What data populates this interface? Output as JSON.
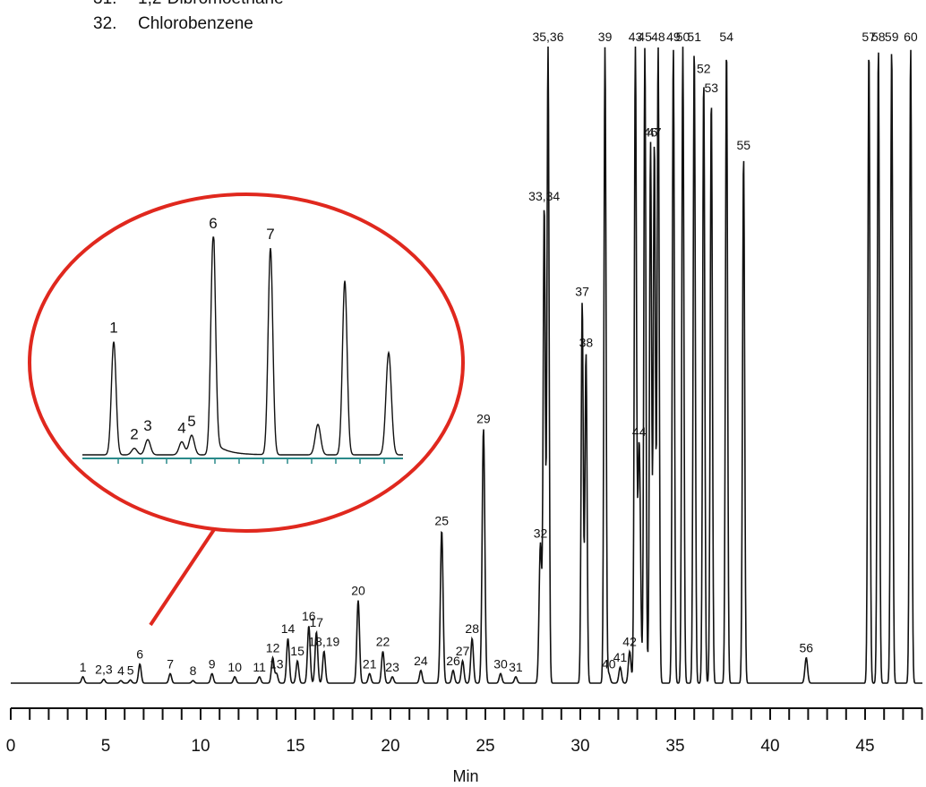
{
  "chart_data": {
    "type": "line",
    "xlabel": "Min",
    "xlim": [
      0,
      48.5
    ],
    "x_ticks": [
      "0",
      "5",
      "10",
      "15",
      "20",
      "25",
      "30",
      "35",
      "40",
      "45"
    ],
    "legend_entries": [
      {
        "num": "31.",
        "name": "1,2-Dibromoethane"
      },
      {
        "num": "32.",
        "name": "Chlorobenzene"
      }
    ],
    "peaks": [
      {
        "label": "1",
        "rt": 3.8,
        "h": 0.01
      },
      {
        "label": "2,3",
        "rt": 4.9,
        "h": 0.006
      },
      {
        "label": "4",
        "rt": 5.8,
        "h": 0.004
      },
      {
        "label": "5",
        "rt": 6.3,
        "h": 0.005
      },
      {
        "label": "6",
        "rt": 6.8,
        "h": 0.03
      },
      {
        "label": "7",
        "rt": 8.4,
        "h": 0.015
      },
      {
        "label": "8",
        "rt": 9.6,
        "h": 0.004
      },
      {
        "label": "9",
        "rt": 10.6,
        "h": 0.015
      },
      {
        "label": "10",
        "rt": 11.8,
        "h": 0.01
      },
      {
        "label": "11",
        "rt": 13.1,
        "h": 0.01
      },
      {
        "label": "12",
        "rt": 13.8,
        "h": 0.04
      },
      {
        "label": "13",
        "rt": 14.0,
        "h": 0.015
      },
      {
        "label": "14",
        "rt": 14.6,
        "h": 0.07
      },
      {
        "label": "15",
        "rt": 15.1,
        "h": 0.035
      },
      {
        "label": "16",
        "rt": 15.7,
        "h": 0.09
      },
      {
        "label": "17",
        "rt": 16.1,
        "h": 0.08
      },
      {
        "label": "18,19",
        "rt": 16.5,
        "h": 0.05
      },
      {
        "label": "20",
        "rt": 18.3,
        "h": 0.13
      },
      {
        "label": "21",
        "rt": 18.9,
        "h": 0.015
      },
      {
        "label": "22",
        "rt": 19.6,
        "h": 0.05
      },
      {
        "label": "23",
        "rt": 20.1,
        "h": 0.01
      },
      {
        "label": "24",
        "rt": 21.6,
        "h": 0.02
      },
      {
        "label": "25",
        "rt": 22.7,
        "h": 0.24
      },
      {
        "label": "26",
        "rt": 23.3,
        "h": 0.02
      },
      {
        "label": "27",
        "rt": 23.8,
        "h": 0.035
      },
      {
        "label": "28",
        "rt": 24.3,
        "h": 0.07
      },
      {
        "label": "29",
        "rt": 24.9,
        "h": 0.4
      },
      {
        "label": "30",
        "rt": 25.8,
        "h": 0.015
      },
      {
        "label": "31",
        "rt": 26.6,
        "h": 0.01
      },
      {
        "label": "32",
        "rt": 27.9,
        "h": 0.22
      },
      {
        "label": "33,34",
        "rt": 28.1,
        "h": 0.75
      },
      {
        "label": "35,36",
        "rt": 28.3,
        "h": 1.0
      },
      {
        "label": "37",
        "rt": 30.1,
        "h": 0.6
      },
      {
        "label": "38",
        "rt": 30.3,
        "h": 0.52
      },
      {
        "label": "39",
        "rt": 31.3,
        "h": 1.0
      },
      {
        "label": "40",
        "rt": 31.5,
        "h": 0.015
      },
      {
        "label": "41",
        "rt": 32.1,
        "h": 0.025
      },
      {
        "label": "42",
        "rt": 32.6,
        "h": 0.05
      },
      {
        "label": "43",
        "rt": 32.9,
        "h": 1.0
      },
      {
        "label": "44",
        "rt": 33.1,
        "h": 0.38
      },
      {
        "label": "45",
        "rt": 33.4,
        "h": 1.0
      },
      {
        "label": "46",
        "rt": 33.7,
        "h": 0.85
      },
      {
        "label": "47",
        "rt": 33.9,
        "h": 0.85
      },
      {
        "label": "48",
        "rt": 34.1,
        "h": 1.0
      },
      {
        "label": "49",
        "rt": 34.9,
        "h": 1.0
      },
      {
        "label": "50",
        "rt": 35.4,
        "h": 1.0
      },
      {
        "label": "51",
        "rt": 36.0,
        "h": 1.0
      },
      {
        "label": "52",
        "rt": 36.5,
        "h": 0.95
      },
      {
        "label": "53",
        "rt": 36.9,
        "h": 0.92
      },
      {
        "label": "54",
        "rt": 37.7,
        "h": 1.0
      },
      {
        "label": "55",
        "rt": 38.6,
        "h": 0.83
      },
      {
        "label": "56",
        "rt": 41.9,
        "h": 0.04
      },
      {
        "label": "57",
        "rt": 45.2,
        "h": 1.0
      },
      {
        "label": "58",
        "rt": 45.7,
        "h": 1.0
      },
      {
        "label": "59",
        "rt": 46.4,
        "h": 1.0
      },
      {
        "label": "60",
        "rt": 47.4,
        "h": 1.0
      }
    ],
    "inset": {
      "peaks": [
        {
          "label": "1",
          "h": 0.52
        },
        {
          "label": "2",
          "h": 0.03
        },
        {
          "label": "3",
          "h": 0.07
        },
        {
          "label": "4",
          "h": 0.06
        },
        {
          "label": "5",
          "h": 0.09
        },
        {
          "label": "6",
          "h": 1.0
        },
        {
          "label": "7",
          "h": 0.95
        },
        {
          "label": "",
          "h": 0.14
        },
        {
          "label": "",
          "h": 0.8
        },
        {
          "label": "",
          "h": 0.47
        }
      ]
    }
  }
}
